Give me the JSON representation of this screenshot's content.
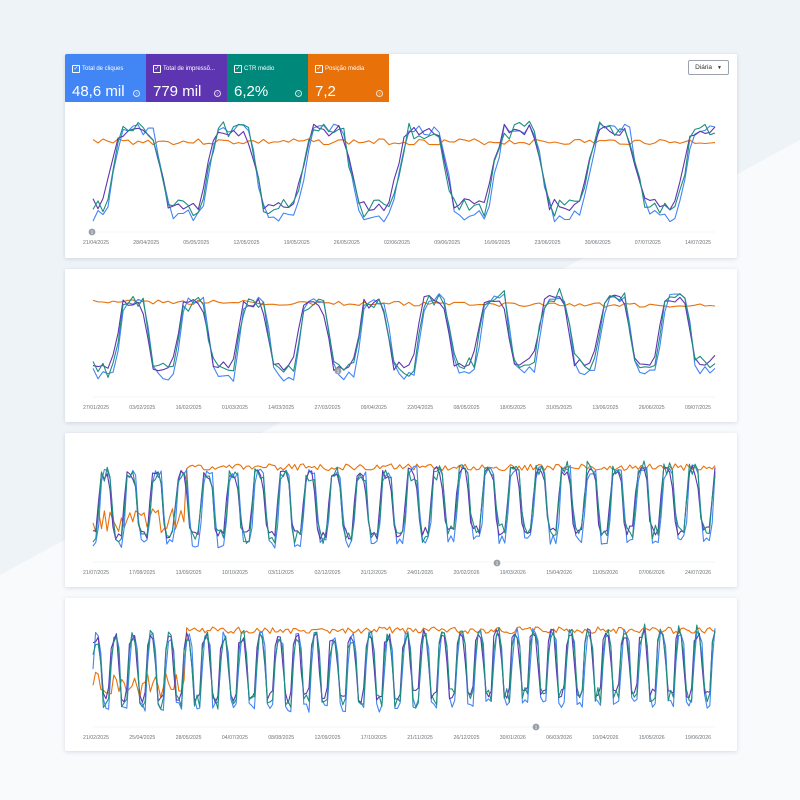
{
  "metrics": {
    "clicks": {
      "label": "Total de cliques",
      "value": "48,6 mil",
      "color": "#4285f4"
    },
    "impressions": {
      "label": "Total de impressõ...",
      "value": "779 mil",
      "color": "#5e35b1"
    },
    "ctr": {
      "label": "CTR médio",
      "value": "6,2%",
      "color": "#00897b"
    },
    "position": {
      "label": "Posição média",
      "value": "7,2",
      "color": "#e8710a"
    }
  },
  "granularity": "Diária",
  "colors": {
    "orange": "#e8710a",
    "blue": "#4285f4",
    "purple": "#5e35b1",
    "teal": "#1e8e7e",
    "grid": "#e8eaed"
  },
  "chart_data": [
    {
      "type": "line",
      "x": [
        "21/04/2025",
        "28/04/2025",
        "05/05/2025",
        "12/05/2025",
        "19/05/2025",
        "26/05/2025",
        "02/06/2025",
        "09/06/2025",
        "16/06/2025",
        "23/06/2025",
        "30/06/2025",
        "07/07/2025",
        "14/07/2025"
      ],
      "series": [
        {
          "color": "orange"
        },
        {
          "color": "blue"
        },
        {
          "color": "purple"
        },
        {
          "color": "teal"
        }
      ],
      "marker_after_index": 0
    },
    {
      "type": "line",
      "x": [
        "27/01/2025",
        "03/02/2025",
        "16/02/2025",
        "01/03/2025",
        "14/03/2025",
        "27/03/2025",
        "09/04/2025",
        "22/04/2025",
        "08/05/2025",
        "18/05/2025",
        "31/05/2025",
        "13/06/2025",
        "26/06/2025",
        "09/07/2025"
      ],
      "series": [
        {
          "color": "orange"
        },
        {
          "color": "blue"
        },
        {
          "color": "purple"
        },
        {
          "color": "teal"
        }
      ],
      "marker_after_index": 6
    },
    {
      "type": "line",
      "x": [
        "21/07/2025",
        "17/08/2025",
        "13/09/2025",
        "10/10/2025",
        "03/11/2025",
        "02/12/2025",
        "31/12/2025",
        "24/01/2026",
        "20/02/2026",
        "19/03/2026",
        "15/04/2026",
        "11/05/2026",
        "07/06/2026",
        "24/07/2026"
      ],
      "series": [
        {
          "color": "orange"
        },
        {
          "color": "blue"
        },
        {
          "color": "purple"
        },
        {
          "color": "teal"
        }
      ],
      "marker_after_index": 10
    },
    {
      "type": "line",
      "x": [
        "21/02/2025",
        "25/04/2025",
        "28/05/2025",
        "04/07/2025",
        "08/08/2025",
        "12/09/2025",
        "17/10/2025",
        "21/11/2025",
        "26/12/2025",
        "30/01/2026",
        "06/03/2026",
        "10/04/2026",
        "15/05/2026",
        "19/06/2026"
      ],
      "series": [
        {
          "color": "orange"
        },
        {
          "color": "blue"
        },
        {
          "color": "purple"
        },
        {
          "color": "teal"
        }
      ],
      "marker_after_index": 11
    }
  ]
}
